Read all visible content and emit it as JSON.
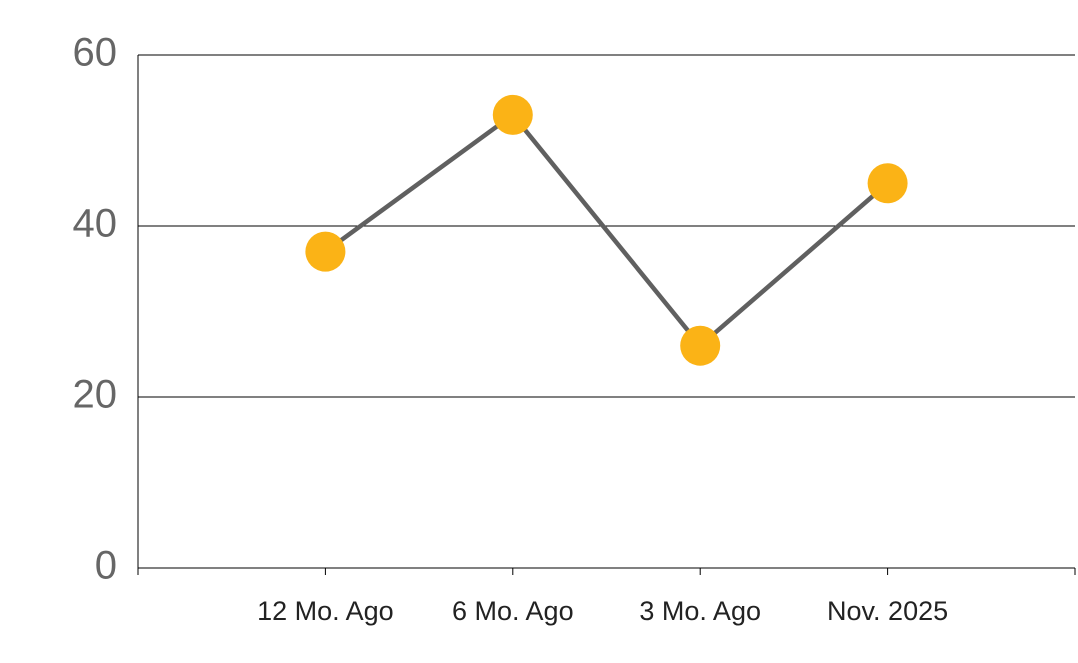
{
  "chart_data": {
    "type": "line",
    "categories": [
      "12 Mo. Ago",
      "6 Mo. Ago",
      "3 Mo. Ago",
      "Nov. 2025"
    ],
    "series": [
      {
        "color": "#606060",
        "marker_color": "#fbb316",
        "values": [
          37,
          53,
          26,
          45
        ]
      }
    ],
    "ylim": [
      0,
      60
    ],
    "yticks": [
      0,
      20,
      40,
      60
    ],
    "grid": true
  }
}
